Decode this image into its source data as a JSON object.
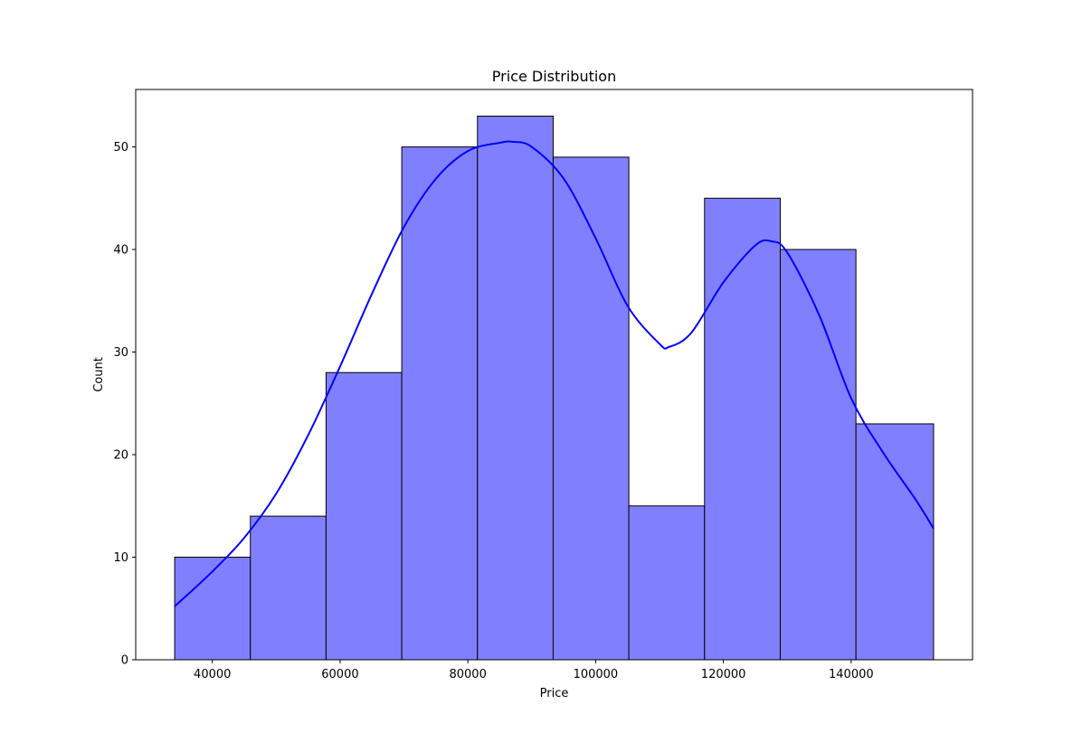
{
  "chart_data": {
    "type": "bar",
    "subtype": "histogram",
    "title": "Price Distribution",
    "xlabel": "Price",
    "ylabel": "Count",
    "xlim": [
      28000,
      159000
    ],
    "ylim": [
      0,
      55.6
    ],
    "xticks": [
      40000,
      60000,
      80000,
      100000,
      120000,
      140000
    ],
    "yticks": [
      0,
      10,
      20,
      30,
      40,
      50
    ],
    "bins": [
      {
        "start": 34100,
        "end": 45950,
        "count": 10
      },
      {
        "start": 45950,
        "end": 57800,
        "count": 14
      },
      {
        "start": 57800,
        "end": 69650,
        "count": 28
      },
      {
        "start": 69650,
        "end": 81500,
        "count": 50
      },
      {
        "start": 81500,
        "end": 93350,
        "count": 53
      },
      {
        "start": 93350,
        "end": 105200,
        "count": 49
      },
      {
        "start": 105200,
        "end": 117050,
        "count": 15
      },
      {
        "start": 117050,
        "end": 128900,
        "count": 45
      },
      {
        "start": 128900,
        "end": 140750,
        "count": 40
      },
      {
        "start": 140750,
        "end": 152900,
        "count": 23
      }
    ],
    "kde": {
      "x": [
        34100,
        40000,
        45000,
        50000,
        55000,
        60000,
        65000,
        70000,
        75000,
        80000,
        85000,
        87000,
        90000,
        95000,
        100000,
        105000,
        110000,
        111500,
        115000,
        120000,
        125000,
        127500,
        130000,
        135000,
        140000,
        145000,
        150000,
        152900
      ],
      "y": [
        5.2,
        8.6,
        11.9,
        16.2,
        21.9,
        28.6,
        35.7,
        42.2,
        46.9,
        49.6,
        50.4,
        50.5,
        50.0,
        46.9,
        41.1,
        34.5,
        30.8,
        30.5,
        31.9,
        36.8,
        40.4,
        40.8,
        39.7,
        33.6,
        25.5,
        20.2,
        15.7,
        12.8
      ]
    },
    "colors": {
      "bar_fill": "#8080ff",
      "bar_edge": "#000000",
      "kde_line": "#0000ff"
    },
    "grid": false,
    "legend": "none"
  }
}
